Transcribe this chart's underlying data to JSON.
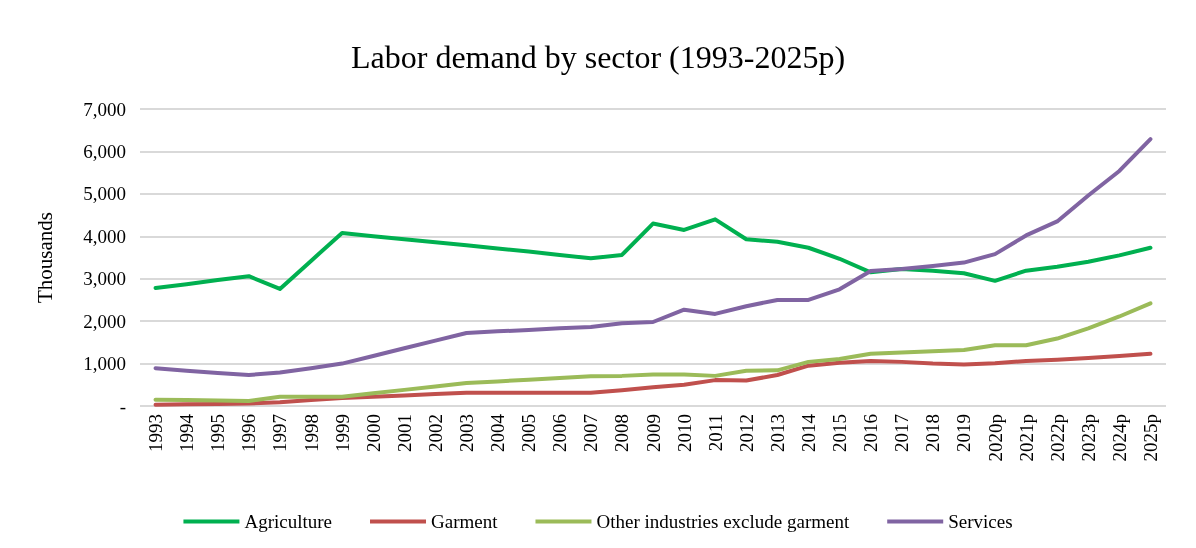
{
  "chart_data": {
    "type": "line",
    "title": "Labor demand by sector (1993-2025p)",
    "ylabel": "Thousands",
    "categories": [
      "1993",
      "1994",
      "1995",
      "1996",
      "1997",
      "1998",
      "1999",
      "2000",
      "2001",
      "2002",
      "2003",
      "2004",
      "2005",
      "2006",
      "2007",
      "2008",
      "2009",
      "2010",
      "2011",
      "2012",
      "2013",
      "2014",
      "2015",
      "2016",
      "2017",
      "2018",
      "2019",
      "2020p",
      "2021p",
      "2022p",
      "2023p",
      "2024p",
      "2025p"
    ],
    "series": [
      {
        "name": "Agriculture",
        "color": "#00b050",
        "values": [
          2780,
          2870,
          2970,
          3060,
          2760,
          3420,
          4080,
          4000,
          3930,
          3860,
          3790,
          3710,
          3640,
          3560,
          3480,
          3560,
          4300,
          4150,
          4400,
          3930,
          3870,
          3730,
          3470,
          3150,
          3230,
          3190,
          3130,
          2950,
          3190,
          3280,
          3400,
          3550,
          3730
        ]
      },
      {
        "name": "Garment",
        "color": "#c0504d",
        "values": [
          30,
          40,
          50,
          60,
          90,
          140,
          190,
          220,
          250,
          280,
          310,
          310,
          310,
          310,
          310,
          370,
          440,
          500,
          610,
          600,
          730,
          950,
          1020,
          1060,
          1040,
          1000,
          980,
          1010,
          1060,
          1090,
          1130,
          1180,
          1230
        ]
      },
      {
        "name": "Other industries exclude garment",
        "color": "#9bbb59",
        "values": [
          150,
          140,
          130,
          120,
          220,
          220,
          220,
          300,
          380,
          460,
          540,
          580,
          620,
          660,
          700,
          710,
          740,
          740,
          710,
          830,
          840,
          1040,
          1110,
          1230,
          1260,
          1290,
          1320,
          1430,
          1430,
          1590,
          1830,
          2110,
          2420
        ]
      },
      {
        "name": "Services",
        "color": "#8064a2",
        "values": [
          890,
          830,
          780,
          730,
          790,
          890,
          1000,
          1180,
          1360,
          1540,
          1720,
          1760,
          1790,
          1830,
          1860,
          1950,
          1980,
          2270,
          2170,
          2350,
          2500,
          2500,
          2750,
          3180,
          3230,
          3300,
          3380,
          3580,
          4020,
          4350,
          4960,
          5540,
          6290
        ]
      }
    ],
    "ylim": [
      0,
      7000
    ],
    "yticks": [
      {
        "value": 0,
        "label": "-"
      },
      {
        "value": 1000,
        "label": "1,000"
      },
      {
        "value": 2000,
        "label": "2,000"
      },
      {
        "value": 3000,
        "label": "3,000"
      },
      {
        "value": 4000,
        "label": "4,000"
      },
      {
        "value": 5000,
        "label": "5,000"
      },
      {
        "value": 6000,
        "label": "6,000"
      },
      {
        "value": 7000,
        "label": "7,000"
      }
    ],
    "grid": "y",
    "legend": "bottom",
    "marker": "none",
    "line_style": "solid"
  }
}
